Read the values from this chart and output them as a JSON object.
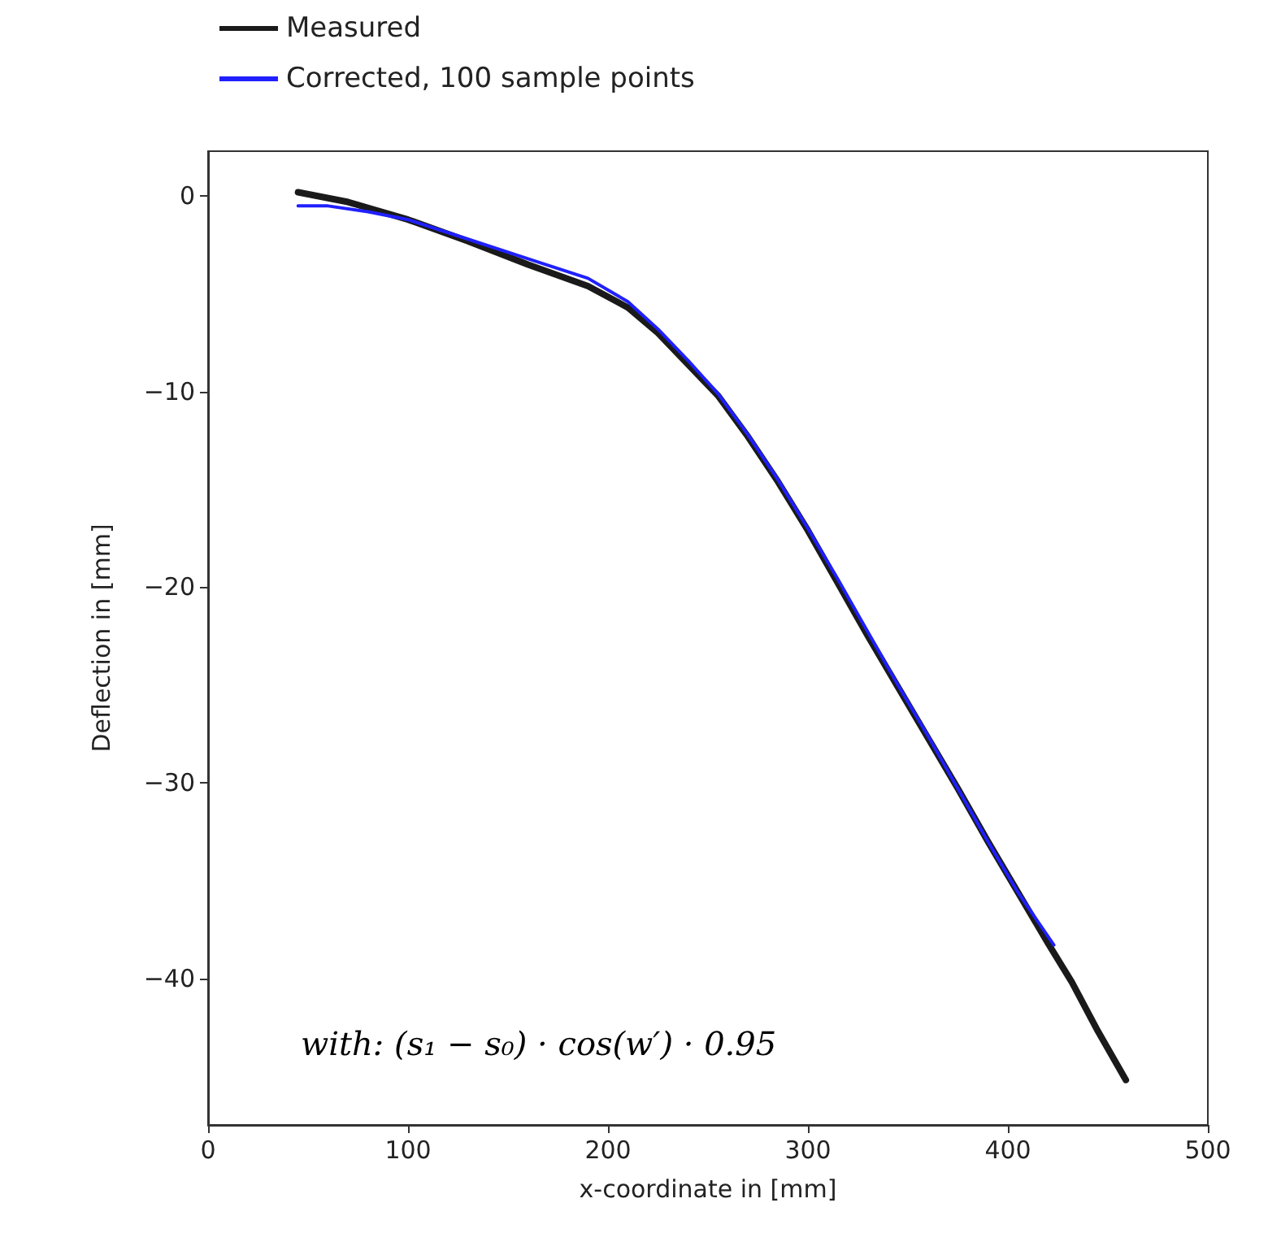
{
  "chart_data": {
    "type": "line",
    "xlabel": "x-coordinate in [mm]",
    "ylabel": "Deflection in [mm]",
    "xlim": [
      0,
      500
    ],
    "xticks": [
      0,
      100,
      200,
      300,
      400,
      500
    ],
    "ylim": [
      -47.5,
      2.3
    ],
    "yticks": [
      -40,
      -30,
      -20,
      -10,
      0
    ],
    "grid": false,
    "legend": "top left",
    "marker": "none",
    "line_style": "solid",
    "annotations": [
      "with: (s₁ − s₀) · cos(w′) · 0.95"
    ],
    "series": [
      {
        "name": "Measured",
        "color": "#1a1a1a",
        "x": [
          45,
          70,
          100,
          130,
          160,
          190,
          210,
          225,
          240,
          255,
          270,
          285,
          300,
          315,
          330,
          345,
          360,
          375,
          390,
          405,
          420,
          432,
          445,
          459
        ],
        "values": [
          0.2,
          -0.3,
          -1.2,
          -2.3,
          -3.5,
          -4.6,
          -5.7,
          -7,
          -8.6,
          -10.2,
          -12.3,
          -14.6,
          -17.1,
          -19.8,
          -22.5,
          -25.1,
          -27.7,
          -30.3,
          -33,
          -35.6,
          -38.2,
          -40.2,
          -42.7,
          -45.2
        ]
      },
      {
        "name": "Corrected, 100 sample points",
        "color": "#2020ff",
        "x": [
          45,
          60,
          80,
          100,
          130,
          160,
          190,
          210,
          225,
          240,
          255,
          270,
          285,
          300,
          315,
          330,
          345,
          360,
          375,
          390,
          405,
          423
        ],
        "values": [
          -0.5,
          -0.5,
          -0.8,
          -1.2,
          -2.2,
          -3.2,
          -4.2,
          -5.4,
          -6.8,
          -8.4,
          -10.1,
          -12.2,
          -14.5,
          -17,
          -19.6,
          -22.3,
          -25,
          -27.6,
          -30.3,
          -33,
          -35.6,
          -38.3
        ]
      }
    ]
  }
}
